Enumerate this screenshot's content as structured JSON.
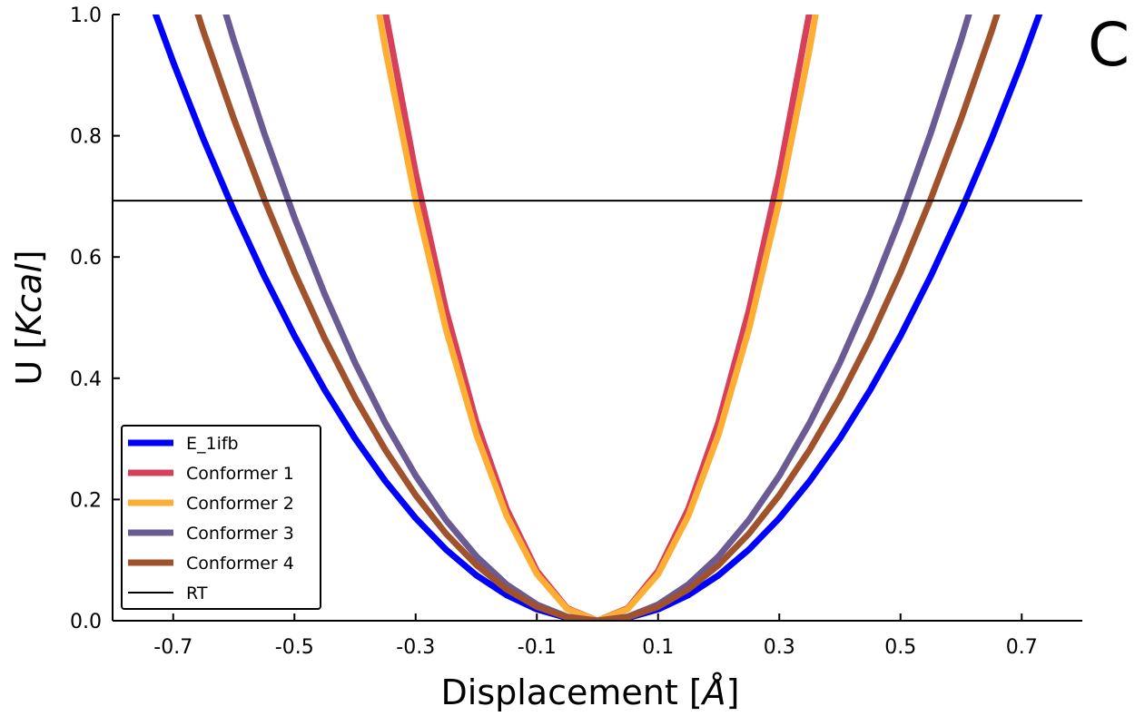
{
  "chart_data": {
    "type": "line",
    "panel_label": "C",
    "xlabel": {
      "main": "Displacement [",
      "unit": "Å",
      "close": "]"
    },
    "ylabel": {
      "main": "U [",
      "unit": "Kcal",
      "close": "]"
    },
    "xlim": [
      -0.8,
      0.8
    ],
    "ylim": [
      0.0,
      1.0
    ],
    "x_ticks": [
      -0.7,
      -0.5,
      -0.3,
      -0.1,
      0.1,
      0.3,
      0.5,
      0.7
    ],
    "x_tick_labels": [
      "-0.7",
      "-0.5",
      "-0.3",
      "-0.1",
      "0.1",
      "0.3",
      "0.5",
      "0.7"
    ],
    "y_ticks": [
      0.0,
      0.2,
      0.4,
      0.6,
      0.8,
      1.0
    ],
    "y_tick_labels": [
      "0.0",
      "0.2",
      "0.4",
      "0.6",
      "0.8",
      "1.0"
    ],
    "grid": false,
    "legend_position": "bottom-left",
    "series": [
      {
        "name": "E_1ifb",
        "color": "#0000ff",
        "a": 1.88
      },
      {
        "name": "Conformer 1",
        "color": "#d6405a",
        "a": 8.2
      },
      {
        "name": "Conformer 2",
        "color": "#ffae34",
        "a": 7.7
      },
      {
        "name": "Conformer 3",
        "color": "#6b5b95",
        "a": 2.66
      },
      {
        "name": "Conformer 4",
        "color": "#a0522d",
        "a": 2.3
      }
    ],
    "reference_line": {
      "name": "RT",
      "y": 0.693,
      "color": "#000000"
    }
  }
}
